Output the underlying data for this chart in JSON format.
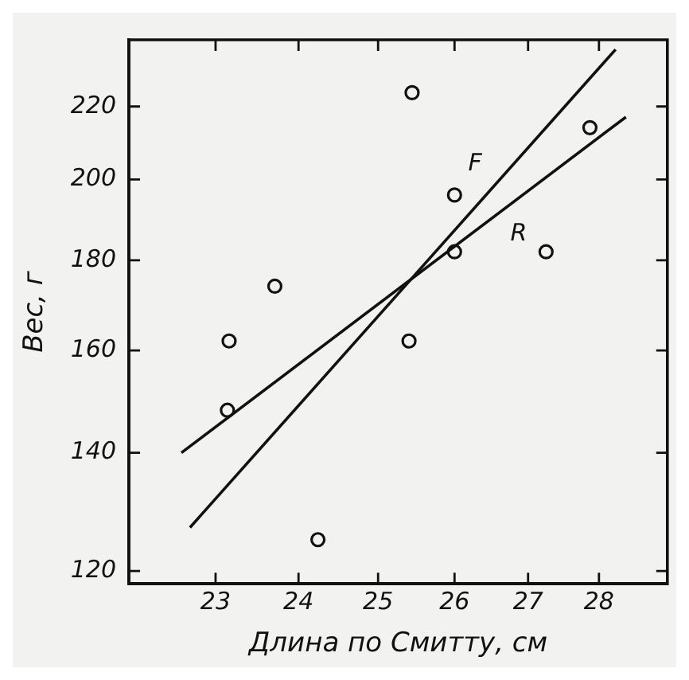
{
  "chart_data": {
    "type": "scatter",
    "xlabel": "Длина по Смитту, см",
    "ylabel": "Вес, г",
    "log": "xy",
    "grid": false,
    "legend": false,
    "xlim": [
      22,
      29
    ],
    "xticks": [
      23,
      24,
      25,
      26,
      27,
      28
    ],
    "ylim": [
      118,
      240
    ],
    "yticks": [
      120,
      140,
      160,
      180,
      200,
      220
    ],
    "series": [
      {
        "marker": "circle",
        "color": "#111111",
        "x": [
          25.44,
          27.87,
          26.0,
          26.0,
          27.25,
          23.71,
          23.16,
          25.4,
          23.14,
          24.24
        ],
        "values": [
          224,
          214,
          196,
          182,
          182,
          174,
          162,
          162,
          148,
          125
        ]
      },
      {
        "type": "line",
        "marker": "none",
        "name": "F",
        "color": "#111111",
        "x": [
          22.7,
          28.24
        ],
        "values": [
          127,
          237
        ]
      },
      {
        "type": "line",
        "marker": "none",
        "name": "R",
        "color": "#111111",
        "x": [
          22.6,
          28.39
        ],
        "values": [
          140,
          217
        ]
      }
    ]
  }
}
